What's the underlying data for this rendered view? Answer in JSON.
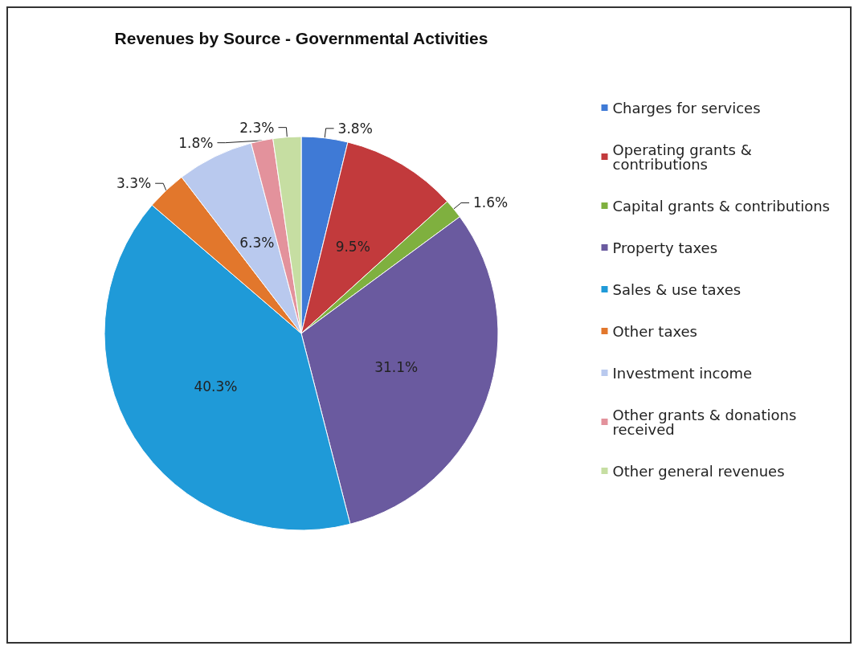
{
  "chart_data": {
    "type": "pie",
    "title": "Revenues by Source - Governmental Activities",
    "categories": [
      "Charges for services",
      "Operating grants & contributions",
      "Capital grants & contributions",
      "Property taxes",
      "Sales & use taxes",
      "Other taxes",
      "Investment income",
      "Other grants & donations received",
      "Other general revenues"
    ],
    "values": [
      3.8,
      9.5,
      1.6,
      31.1,
      40.3,
      3.3,
      6.3,
      1.8,
      2.3
    ],
    "colors": [
      "#3f7ad6",
      "#c23a3c",
      "#7fb03f",
      "#6a5a9f",
      "#1f9ad8",
      "#e2772c",
      "#b9c9ee",
      "#e3929c",
      "#c6dea2"
    ],
    "value_labels": [
      "3.8%",
      "9.5%",
      "1.6%",
      "31.1%",
      "40.3%",
      "3.3%",
      "6.3%",
      "1.8%",
      "2.3%"
    ],
    "legend": "right"
  }
}
